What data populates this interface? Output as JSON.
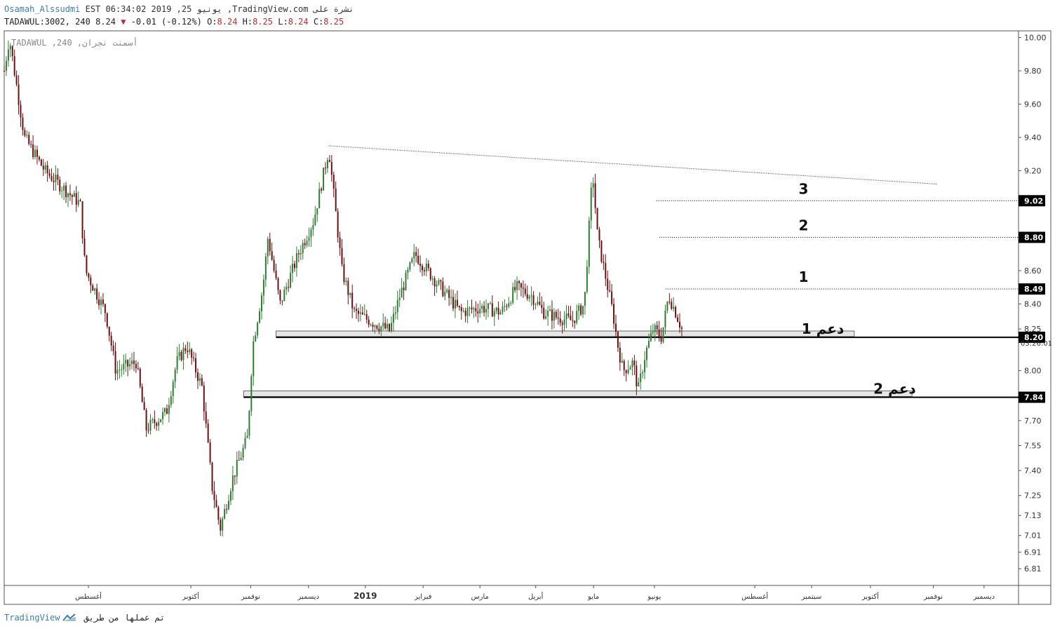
{
  "header": {
    "line1_user": "Osamah_Alssudmi",
    "line1_rest": "EST 06:34:02 2019 ,25 يونيو ,TradingView.com نشرة على",
    "symbol": "TADAWUL:3002, 240",
    "last": "8.24",
    "change": "-0.01 (-0.12%)",
    "o_label": "O:",
    "o_val": "8.24",
    "h_label": "H:",
    "h_val": "8.25",
    "l_label": "L:",
    "l_val": "8.24",
    "c_label": "C:",
    "c_val": "8.25"
  },
  "watermark": "TADAWUL ,240 ,أسمنت نجران",
  "footer": {
    "brand": "TradingView",
    "credit": "تم عملها من طريق"
  },
  "chart_data": {
    "type": "candlestick",
    "ylim": [
      6.71,
      10.04
    ],
    "y_ticks": [
      "10.00",
      "9.80",
      "9.60",
      "9.40",
      "9.20",
      "8.60",
      "8.40",
      "8.25",
      "8.00",
      "7.70",
      "7.55",
      "7.40",
      "7.25",
      "7.13",
      "7.01",
      "6.91",
      "6.81"
    ],
    "x_ticks": [
      "أغسطس",
      "أكتوبر",
      "نوفمبر",
      "ديسمبر",
      "2019",
      "فبراير",
      "مارس",
      "أبريل",
      "مايو",
      "يونيو",
      "أغسطس",
      "سبتمبر",
      "أكتوبر",
      "نوفمبر",
      "ديسمبر"
    ],
    "x_tick_pos": [
      0.083,
      0.184,
      0.243,
      0.3,
      0.356,
      0.413,
      0.469,
      0.524,
      0.581,
      0.641,
      0.74,
      0.796,
      0.854,
      0.916,
      0.966
    ],
    "price_path": [
      [
        0.0,
        9.8
      ],
      [
        0.005,
        10.0
      ],
      [
        0.02,
        9.4
      ],
      [
        0.04,
        9.2
      ],
      [
        0.075,
        9.0
      ],
      [
        0.08,
        8.6
      ],
      [
        0.1,
        8.35
      ],
      [
        0.11,
        8.0
      ],
      [
        0.13,
        8.05
      ],
      [
        0.14,
        7.65
      ],
      [
        0.16,
        7.75
      ],
      [
        0.17,
        8.05
      ],
      [
        0.18,
        8.15
      ],
      [
        0.195,
        7.9
      ],
      [
        0.205,
        7.3
      ],
      [
        0.213,
        7.05
      ],
      [
        0.225,
        7.35
      ],
      [
        0.24,
        7.6
      ],
      [
        0.245,
        8.15
      ],
      [
        0.255,
        8.5
      ],
      [
        0.26,
        8.8
      ],
      [
        0.272,
        8.4
      ],
      [
        0.29,
        8.7
      ],
      [
        0.305,
        8.9
      ],
      [
        0.32,
        9.33
      ],
      [
        0.333,
        8.6
      ],
      [
        0.345,
        8.35
      ],
      [
        0.36,
        8.3
      ],
      [
        0.38,
        8.24
      ],
      [
        0.39,
        8.45
      ],
      [
        0.405,
        8.7
      ],
      [
        0.43,
        8.5
      ],
      [
        0.45,
        8.35
      ],
      [
        0.47,
        8.38
      ],
      [
        0.49,
        8.35
      ],
      [
        0.505,
        8.5
      ],
      [
        0.52,
        8.45
      ],
      [
        0.532,
        8.35
      ],
      [
        0.545,
        8.32
      ],
      [
        0.56,
        8.3
      ],
      [
        0.572,
        8.4
      ],
      [
        0.58,
        9.2
      ],
      [
        0.585,
        8.8
      ],
      [
        0.595,
        8.5
      ],
      [
        0.6,
        8.35
      ],
      [
        0.605,
        8.15
      ],
      [
        0.61,
        8.0
      ],
      [
        0.62,
        8.05
      ],
      [
        0.625,
        7.88
      ],
      [
        0.632,
        8.1
      ],
      [
        0.64,
        8.25
      ],
      [
        0.648,
        8.2
      ],
      [
        0.655,
        8.45
      ],
      [
        0.662,
        8.35
      ],
      [
        0.668,
        8.25
      ]
    ],
    "resistance_lines": [
      {
        "label": "1",
        "value": 8.49
      },
      {
        "label": "2",
        "value": 8.8
      },
      {
        "label": "3",
        "value": 9.02
      }
    ],
    "support_lines": [
      {
        "label": "دعم 1",
        "value": 8.2
      },
      {
        "label": "دعم 2",
        "value": 7.84
      }
    ],
    "price_labels": [
      "9.02",
      "8.80",
      "8.49",
      "8.20",
      "7.84"
    ],
    "trendline": {
      "from": [
        0.32,
        9.35
      ],
      "to": [
        0.92,
        9.12
      ]
    },
    "countdown": "03:26:01",
    "colors": {
      "up": "#2e7d32",
      "down": "#6d0f12",
      "price_label_bg": "#000000"
    }
  }
}
